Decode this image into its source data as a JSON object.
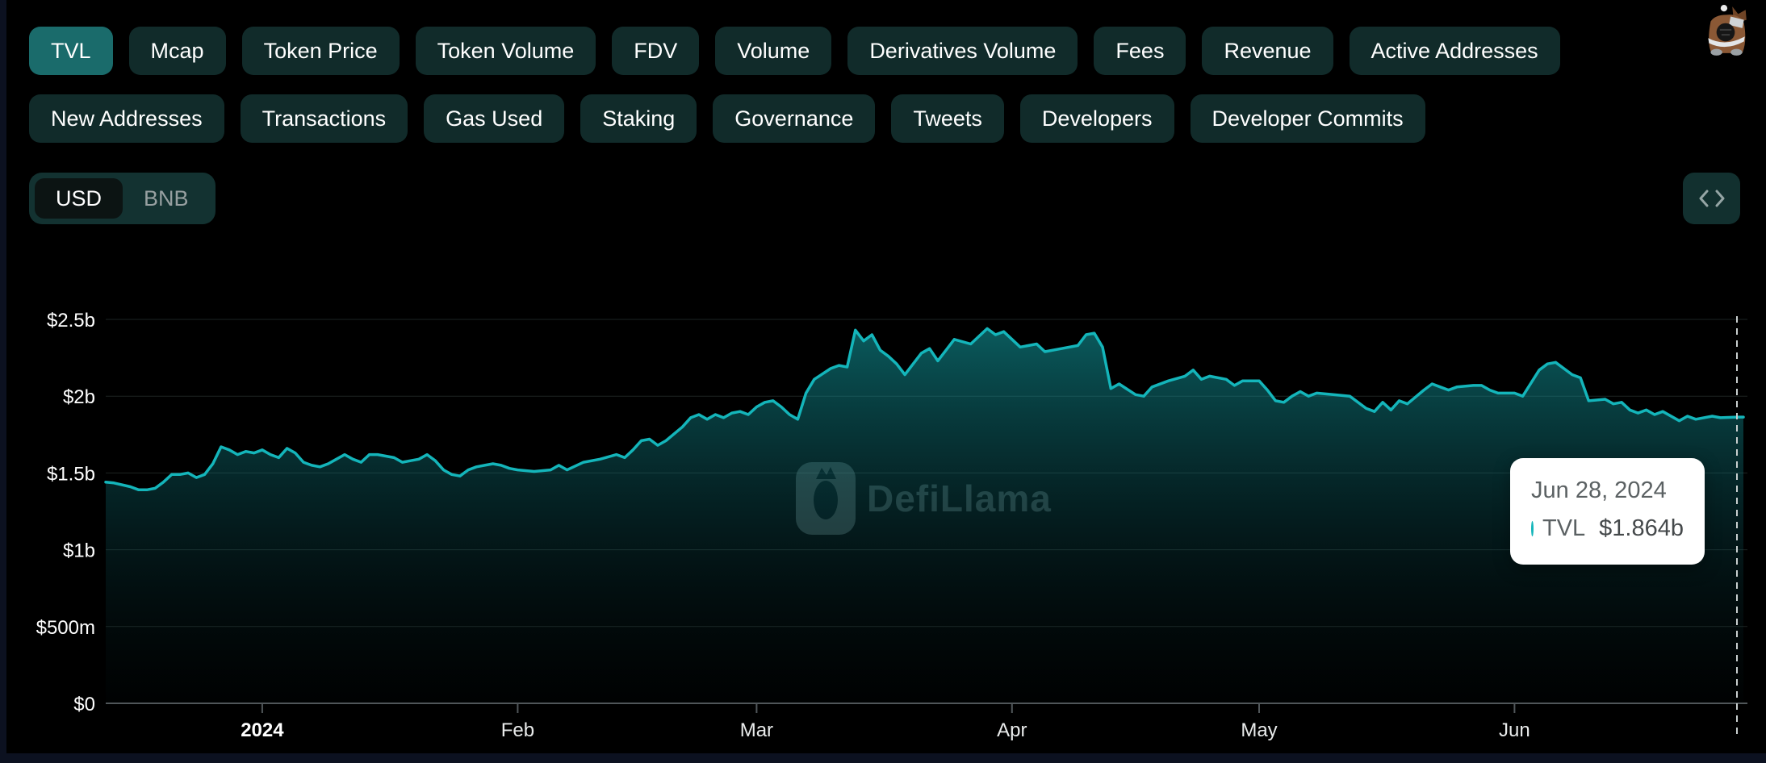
{
  "metric_tabs": {
    "row1": [
      {
        "label": "TVL",
        "selected": true
      },
      {
        "label": "Mcap"
      },
      {
        "label": "Token Price"
      },
      {
        "label": "Token Volume"
      },
      {
        "label": "FDV"
      },
      {
        "label": "Volume"
      },
      {
        "label": "Derivatives Volume"
      },
      {
        "label": "Fees"
      },
      {
        "label": "Revenue"
      },
      {
        "label": "Active Addresses"
      }
    ],
    "row2": [
      {
        "label": "New Addresses"
      },
      {
        "label": "Transactions"
      },
      {
        "label": "Gas Used"
      },
      {
        "label": "Staking"
      },
      {
        "label": "Governance"
      },
      {
        "label": "Tweets"
      },
      {
        "label": "Developers"
      },
      {
        "label": "Developer Commits"
      }
    ]
  },
  "currency_toggle": {
    "options": [
      "USD",
      "BNB"
    ],
    "selected": "USD"
  },
  "colors": {
    "tab_selected": "#1a6b6b",
    "tab_unselected": "#112b2a",
    "line": "#14b5ba",
    "gridline": "#1d2423",
    "axis": "#51575a",
    "tooltip_bg": "#ffffff"
  },
  "chart_data": {
    "type": "area",
    "title": "TVL",
    "ylabel": "TVL (USD)",
    "xlabel": "date",
    "ylim": [
      0,
      2.5
    ],
    "grid": true,
    "legend_position": "none",
    "watermark": "DefiLlama",
    "x_unit": "days since 2023-12-13",
    "y_ticks": [
      {
        "v": 2.5,
        "label": "$2.5b"
      },
      {
        "v": 2.0,
        "label": "$2b"
      },
      {
        "v": 1.5,
        "label": "$1.5b"
      },
      {
        "v": 1.0,
        "label": "$1b"
      },
      {
        "v": 0.5,
        "label": "$500m"
      },
      {
        "v": 0,
        "label": "$0"
      }
    ],
    "x_ticks": [
      {
        "day": 19,
        "label": "2024",
        "bold": true
      },
      {
        "day": 50,
        "label": "Feb"
      },
      {
        "day": 79,
        "label": "Mar"
      },
      {
        "day": 110,
        "label": "Apr"
      },
      {
        "day": 140,
        "label": "May"
      },
      {
        "day": 171,
        "label": "Jun"
      }
    ],
    "series": [
      {
        "name": "TVL",
        "color": "#14b5ba",
        "unit": "$b",
        "points": [
          [
            0,
            1.44
          ],
          [
            1,
            1.435
          ],
          [
            3,
            1.41
          ],
          [
            4,
            1.39
          ],
          [
            5,
            1.39
          ],
          [
            6,
            1.4
          ],
          [
            7,
            1.44
          ],
          [
            8,
            1.49
          ],
          [
            9,
            1.49
          ],
          [
            10,
            1.5
          ],
          [
            11,
            1.47
          ],
          [
            12,
            1.49
          ],
          [
            13,
            1.56
          ],
          [
            14,
            1.67
          ],
          [
            15,
            1.65
          ],
          [
            16,
            1.62
          ],
          [
            17,
            1.64
          ],
          [
            18,
            1.63
          ],
          [
            19,
            1.65
          ],
          [
            20,
            1.62
          ],
          [
            21,
            1.6
          ],
          [
            22,
            1.66
          ],
          [
            23,
            1.63
          ],
          [
            24,
            1.57
          ],
          [
            25,
            1.55
          ],
          [
            26,
            1.54
          ],
          [
            27,
            1.56
          ],
          [
            28,
            1.59
          ],
          [
            29,
            1.62
          ],
          [
            30,
            1.59
          ],
          [
            31,
            1.57
          ],
          [
            32,
            1.62
          ],
          [
            33,
            1.62
          ],
          [
            34,
            1.61
          ],
          [
            35,
            1.6
          ],
          [
            36,
            1.57
          ],
          [
            37,
            1.58
          ],
          [
            38,
            1.59
          ],
          [
            39,
            1.62
          ],
          [
            40,
            1.58
          ],
          [
            41,
            1.52
          ],
          [
            42,
            1.49
          ],
          [
            43,
            1.48
          ],
          [
            44,
            1.52
          ],
          [
            45,
            1.54
          ],
          [
            46,
            1.55
          ],
          [
            47,
            1.56
          ],
          [
            48,
            1.55
          ],
          [
            49,
            1.53
          ],
          [
            50,
            1.52
          ],
          [
            52,
            1.51
          ],
          [
            54,
            1.52
          ],
          [
            55,
            1.55
          ],
          [
            56,
            1.52
          ],
          [
            58,
            1.57
          ],
          [
            60,
            1.59
          ],
          [
            62,
            1.62
          ],
          [
            63,
            1.6
          ],
          [
            64,
            1.65
          ],
          [
            65,
            1.71
          ],
          [
            66,
            1.72
          ],
          [
            67,
            1.68
          ],
          [
            68,
            1.71
          ],
          [
            70,
            1.8
          ],
          [
            71,
            1.86
          ],
          [
            72,
            1.88
          ],
          [
            73,
            1.85
          ],
          [
            74,
            1.88
          ],
          [
            75,
            1.86
          ],
          [
            76,
            1.89
          ],
          [
            77,
            1.9
          ],
          [
            78,
            1.88
          ],
          [
            79,
            1.93
          ],
          [
            80,
            1.96
          ],
          [
            81,
            1.97
          ],
          [
            82,
            1.93
          ],
          [
            83,
            1.88
          ],
          [
            84,
            1.85
          ],
          [
            85,
            2.02
          ],
          [
            86,
            2.11
          ],
          [
            88,
            2.18
          ],
          [
            89,
            2.2
          ],
          [
            90,
            2.19
          ],
          [
            91,
            2.43
          ],
          [
            92,
            2.36
          ],
          [
            93,
            2.4
          ],
          [
            94,
            2.3
          ],
          [
            95,
            2.26
          ],
          [
            96,
            2.21
          ],
          [
            97,
            2.14
          ],
          [
            98,
            2.21
          ],
          [
            99,
            2.28
          ],
          [
            100,
            2.31
          ],
          [
            101,
            2.23
          ],
          [
            103,
            2.37
          ],
          [
            105,
            2.34
          ],
          [
            107,
            2.44
          ],
          [
            108,
            2.4
          ],
          [
            109,
            2.42
          ],
          [
            111,
            2.32
          ],
          [
            113,
            2.34
          ],
          [
            114,
            2.29
          ],
          [
            116,
            2.31
          ],
          [
            118,
            2.33
          ],
          [
            119,
            2.4
          ],
          [
            120,
            2.41
          ],
          [
            121,
            2.32
          ],
          [
            122,
            2.05
          ],
          [
            123,
            2.08
          ],
          [
            125,
            2.01
          ],
          [
            126,
            2.0
          ],
          [
            127,
            2.06
          ],
          [
            129,
            2.1
          ],
          [
            131,
            2.13
          ],
          [
            132,
            2.17
          ],
          [
            133,
            2.11
          ],
          [
            134,
            2.13
          ],
          [
            136,
            2.11
          ],
          [
            137,
            2.07
          ],
          [
            138,
            2.1
          ],
          [
            140,
            2.1
          ],
          [
            141,
            2.04
          ],
          [
            142,
            1.97
          ],
          [
            143,
            1.96
          ],
          [
            144,
            2.0
          ],
          [
            145,
            2.03
          ],
          [
            146,
            2.0
          ],
          [
            147,
            2.02
          ],
          [
            149,
            2.01
          ],
          [
            151,
            2.0
          ],
          [
            153,
            1.92
          ],
          [
            154,
            1.9
          ],
          [
            155,
            1.96
          ],
          [
            156,
            1.91
          ],
          [
            157,
            1.97
          ],
          [
            158,
            1.95
          ],
          [
            160,
            2.04
          ],
          [
            161,
            2.08
          ],
          [
            162,
            2.06
          ],
          [
            163,
            2.04
          ],
          [
            164,
            2.06
          ],
          [
            166,
            2.07
          ],
          [
            167,
            2.07
          ],
          [
            168,
            2.04
          ],
          [
            169,
            2.02
          ],
          [
            171,
            2.02
          ],
          [
            172,
            2.0
          ],
          [
            174,
            2.17
          ],
          [
            175,
            2.21
          ],
          [
            176,
            2.22
          ],
          [
            178,
            2.14
          ],
          [
            179,
            2.12
          ],
          [
            180,
            1.97
          ],
          [
            182,
            1.98
          ],
          [
            183,
            1.95
          ],
          [
            184,
            1.96
          ],
          [
            185,
            1.91
          ],
          [
            186,
            1.89
          ],
          [
            187,
            1.91
          ],
          [
            188,
            1.88
          ],
          [
            189,
            1.9
          ],
          [
            191,
            1.84
          ],
          [
            192,
            1.87
          ],
          [
            193,
            1.85
          ],
          [
            195,
            1.87
          ],
          [
            196,
            1.86
          ],
          [
            198,
            1.864
          ]
        ]
      }
    ],
    "cursor": {
      "day": 198
    },
    "tooltip": {
      "date": "Jun 28, 2024",
      "series": "TVL",
      "value": "$1.864b",
      "dot_color": "#14b5ba"
    }
  }
}
